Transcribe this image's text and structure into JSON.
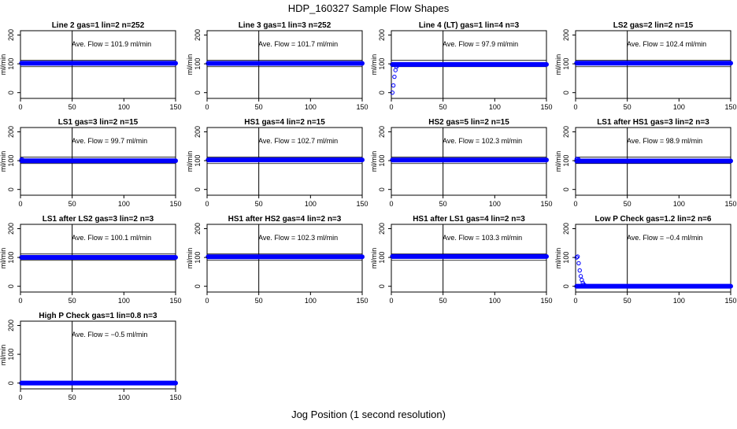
{
  "title": "HDP_160327  Sample Flow Shapes",
  "xlabel": "Jog Position (1 second resolution)",
  "colors": {
    "points": "#0000ff",
    "frame": "#000000"
  },
  "chart_data": [
    {
      "type": "scatter",
      "title": "Line 2 gas=1 lin=2 n=252",
      "ylabel": "ml/min",
      "annotation": "Ave. Flow = 101.9  ml/min",
      "xlim": [
        0,
        150
      ],
      "ylim": [
        -20,
        215
      ],
      "xticks": [
        0,
        50,
        100,
        150
      ],
      "yticks": [
        0,
        100,
        200
      ],
      "vline": 50,
      "hlines": [
        90,
        112
      ],
      "x": [
        1,
        150
      ],
      "level": 101.9,
      "startup": []
    },
    {
      "type": "scatter",
      "title": "Line 3 gas=1 lin=3 n=252",
      "ylabel": "ml/min",
      "annotation": "Ave. Flow = 101.7  ml/min",
      "xlim": [
        0,
        150
      ],
      "ylim": [
        -20,
        215
      ],
      "xticks": [
        0,
        50,
        100,
        150
      ],
      "yticks": [
        0,
        100,
        200
      ],
      "vline": 50,
      "hlines": [
        90,
        112
      ],
      "x": [
        1,
        150
      ],
      "level": 101.7,
      "startup": []
    },
    {
      "type": "scatter",
      "title": "Line 4 (LT) gas=1 lin=4 n=3",
      "ylabel": "ml/min",
      "annotation": "Ave. Flow = 97.9  ml/min",
      "xlim": [
        0,
        150
      ],
      "ylim": [
        -20,
        215
      ],
      "xticks": [
        0,
        50,
        100,
        150
      ],
      "yticks": [
        0,
        100,
        200
      ],
      "vline": 50,
      "hlines": [
        90,
        112
      ],
      "x": [
        1,
        150
      ],
      "level": 97.9,
      "startup": [
        [
          1,
          0
        ],
        [
          2,
          25
        ],
        [
          3,
          55
        ],
        [
          4,
          78
        ],
        [
          5,
          90
        ],
        [
          6,
          95
        ],
        [
          7,
          97
        ]
      ]
    },
    {
      "type": "scatter",
      "title": "LS2 gas=2 lin=2 n=15",
      "ylabel": "ml/min",
      "annotation": "Ave. Flow = 102.4  ml/min",
      "xlim": [
        0,
        150
      ],
      "ylim": [
        -20,
        215
      ],
      "xticks": [
        0,
        50,
        100,
        150
      ],
      "yticks": [
        0,
        100,
        200
      ],
      "vline": 50,
      "hlines": [
        90,
        112
      ],
      "x": [
        1,
        150
      ],
      "level": 102.4,
      "startup": []
    },
    {
      "type": "scatter",
      "title": "LS1 gas=3 lin=2 n=15",
      "ylabel": "ml/min",
      "annotation": "Ave. Flow = 99.7  ml/min",
      "xlim": [
        0,
        150
      ],
      "ylim": [
        -20,
        215
      ],
      "xticks": [
        0,
        50,
        100,
        150
      ],
      "yticks": [
        0,
        100,
        200
      ],
      "vline": 50,
      "hlines": [
        90,
        112
      ],
      "x": [
        1,
        150
      ],
      "level": 99.7,
      "startup": [
        [
          1,
          104
        ],
        [
          2,
          103
        ]
      ]
    },
    {
      "type": "scatter",
      "title": "HS1 gas=4 lin=2 n=15",
      "ylabel": "ml/min",
      "annotation": "Ave. Flow = 102.7  ml/min",
      "xlim": [
        0,
        150
      ],
      "ylim": [
        -20,
        215
      ],
      "xticks": [
        0,
        50,
        100,
        150
      ],
      "yticks": [
        0,
        100,
        200
      ],
      "vline": 50,
      "hlines": [
        90,
        112
      ],
      "x": [
        1,
        150
      ],
      "level": 102.7,
      "startup": []
    },
    {
      "type": "scatter",
      "title": "HS2 gas=5 lin=2 n=15",
      "ylabel": "ml/min",
      "annotation": "Ave. Flow = 102.3  ml/min",
      "xlim": [
        0,
        150
      ],
      "ylim": [
        -20,
        215
      ],
      "xticks": [
        0,
        50,
        100,
        150
      ],
      "yticks": [
        0,
        100,
        200
      ],
      "vline": 50,
      "hlines": [
        90,
        112
      ],
      "x": [
        1,
        150
      ],
      "level": 102.3,
      "startup": []
    },
    {
      "type": "scatter",
      "title": "LS1 after HS1 gas=3 lin=2 n=3",
      "ylabel": "ml/min",
      "annotation": "Ave. Flow = 98.9  ml/min",
      "xlim": [
        0,
        150
      ],
      "ylim": [
        -20,
        215
      ],
      "xticks": [
        0,
        50,
        100,
        150
      ],
      "yticks": [
        0,
        100,
        200
      ],
      "vline": 50,
      "hlines": [
        90,
        112
      ],
      "x": [
        1,
        150
      ],
      "level": 98.9,
      "startup": [
        [
          1,
          105
        ],
        [
          2,
          106
        ],
        [
          3,
          104
        ]
      ]
    },
    {
      "type": "scatter",
      "title": "LS1 after LS2 gas=3 lin=2 n=3",
      "ylabel": "ml/min",
      "annotation": "Ave. Flow = 100.1  ml/min",
      "xlim": [
        0,
        150
      ],
      "ylim": [
        -20,
        215
      ],
      "xticks": [
        0,
        50,
        100,
        150
      ],
      "yticks": [
        0,
        100,
        200
      ],
      "vline": 50,
      "hlines": [
        90,
        112
      ],
      "x": [
        1,
        150
      ],
      "level": 100.1,
      "startup": []
    },
    {
      "type": "scatter",
      "title": "HS1 after HS2 gas=4 lin=2 n=3",
      "ylabel": "ml/min",
      "annotation": "Ave. Flow = 102.3  ml/min",
      "xlim": [
        0,
        150
      ],
      "ylim": [
        -20,
        215
      ],
      "xticks": [
        0,
        50,
        100,
        150
      ],
      "yticks": [
        0,
        100,
        200
      ],
      "vline": 50,
      "hlines": [
        90,
        112
      ],
      "x": [
        1,
        150
      ],
      "level": 102.3,
      "startup": []
    },
    {
      "type": "scatter",
      "title": "HS1 after LS1 gas=4 lin=2 n=3",
      "ylabel": "ml/min",
      "annotation": "Ave. Flow = 103.3  ml/min",
      "xlim": [
        0,
        150
      ],
      "ylim": [
        -20,
        215
      ],
      "xticks": [
        0,
        50,
        100,
        150
      ],
      "yticks": [
        0,
        100,
        200
      ],
      "vline": 50,
      "hlines": [
        90,
        112
      ],
      "x": [
        1,
        150
      ],
      "level": 103.3,
      "startup": []
    },
    {
      "type": "scatter",
      "title": "Low P Check gas=1.2 lin=2 n=6",
      "ylabel": "ml/min",
      "annotation": "Ave. Flow = −0.4  ml/min",
      "xlim": [
        0,
        150
      ],
      "ylim": [
        -20,
        215
      ],
      "xticks": [
        0,
        50,
        100,
        150
      ],
      "yticks": [
        0,
        100,
        200
      ],
      "vline": 50,
      "hlines": [
        -6,
        6
      ],
      "x": [
        1,
        150
      ],
      "level": 0,
      "startup": [
        [
          1,
          100
        ],
        [
          2,
          103
        ],
        [
          3,
          80
        ],
        [
          4,
          55
        ],
        [
          5,
          35
        ],
        [
          6,
          22
        ],
        [
          7,
          12
        ],
        [
          8,
          6
        ],
        [
          9,
          3
        ],
        [
          10,
          1
        ]
      ]
    },
    {
      "type": "scatter",
      "title": "High P Check gas=1 lin=0.8 n=3",
      "ylabel": "ml/min",
      "annotation": "Ave. Flow = −0.5  ml/min",
      "xlim": [
        0,
        150
      ],
      "ylim": [
        -20,
        215
      ],
      "xticks": [
        0,
        50,
        100,
        150
      ],
      "yticks": [
        0,
        100,
        200
      ],
      "vline": 50,
      "hlines": [
        -6,
        6
      ],
      "x": [
        1,
        150
      ],
      "level": 0,
      "startup": []
    }
  ]
}
